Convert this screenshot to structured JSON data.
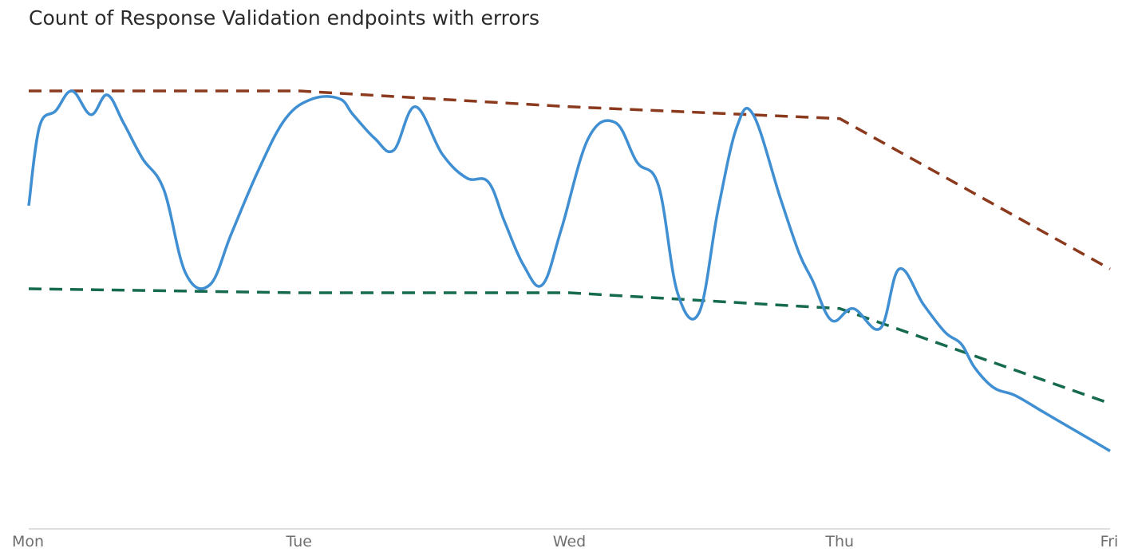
{
  "chart_data": {
    "type": "line",
    "title": "Count of Response Validation endpoints with errors",
    "xlabel": "",
    "ylabel": "",
    "x_ticks": [
      "Mon",
      "Tue",
      "Wed",
      "Thu",
      "Fri"
    ],
    "xlim": [
      0,
      4
    ],
    "ylim": [
      0,
      100
    ],
    "grid": false,
    "series": [
      {
        "style": "solid",
        "color": "#3f8fd2",
        "x": [
          0,
          0.04,
          0.1,
          0.16,
          0.23,
          0.29,
          0.35,
          0.42,
          0.5,
          0.58,
          0.67,
          0.75,
          0.85,
          0.95,
          1.05,
          1.15,
          1.2,
          1.28,
          1.35,
          1.43,
          1.53,
          1.62,
          1.7,
          1.76,
          1.83,
          1.9,
          1.97,
          2.07,
          2.17,
          2.25,
          2.33,
          2.4,
          2.48,
          2.55,
          2.62,
          2.68,
          2.78,
          2.85,
          2.9,
          2.97,
          3.05,
          3.15,
          3.22,
          3.31,
          3.39,
          3.45,
          3.5,
          3.57,
          3.65,
          3.75,
          3.85,
          3.95,
          4.0
        ],
        "values": [
          71,
          91,
          95,
          100,
          94,
          99,
          92,
          83,
          75,
          54,
          51,
          64,
          80,
          93,
          98,
          98,
          94,
          88,
          85,
          96,
          84,
          78,
          77,
          67,
          56,
          51,
          65,
          88,
          92,
          82,
          76,
          49,
          44,
          70,
          91,
          94,
          73,
          59,
          52,
          42,
          45,
          40,
          55,
          46,
          39,
          36,
          30,
          25,
          23,
          19,
          15,
          11,
          9
        ]
      },
      {
        "style": "dashed",
        "color": "#8b3a1e",
        "x": [
          0,
          1,
          2,
          3,
          4
        ],
        "values": [
          100,
          100,
          96,
          93,
          55
        ]
      },
      {
        "style": "dashed",
        "color": "#166a4f",
        "x": [
          0,
          1,
          2,
          3,
          4
        ],
        "values": [
          50,
          49,
          49,
          45,
          21
        ]
      }
    ]
  }
}
